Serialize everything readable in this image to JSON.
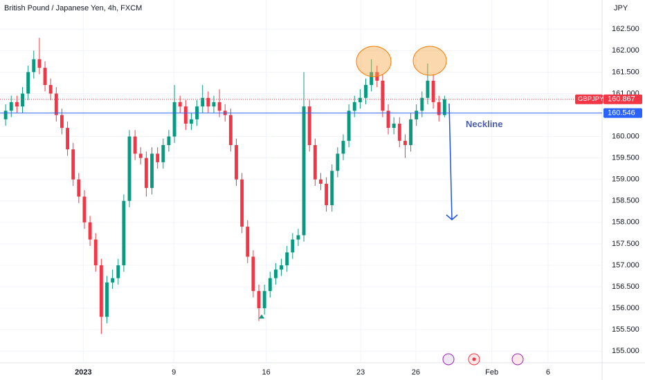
{
  "chart_data": {
    "type": "candlestick",
    "title": "British Pound / Japanese Yen, 4h, FXCM",
    "currency": "JPY",
    "up_color": "#089981",
    "down_color": "#f23645",
    "open": [
      160.4,
      160.6,
      160.8,
      160.7,
      161.0,
      161.5,
      161.8,
      161.6,
      161.2,
      161.0,
      160.5,
      160.2,
      159.7,
      159.0,
      158.6,
      158.0,
      157.6,
      157.0,
      155.8,
      156.6,
      156.7,
      157.0,
      158.5,
      160.0,
      159.6,
      159.5,
      158.8,
      159.6,
      159.4,
      159.8,
      160.0,
      160.8,
      160.7,
      160.3,
      160.4,
      160.7,
      160.9,
      160.7,
      160.8,
      160.6,
      160.5,
      159.8,
      159.0,
      157.9,
      157.2,
      156.4,
      156.0,
      156.4,
      156.7,
      156.9,
      157.0,
      157.3,
      157.6,
      157.7,
      160.7,
      159.8,
      159.0,
      158.9,
      158.4,
      159.2,
      159.6,
      159.9,
      160.6,
      160.8,
      160.9,
      161.2,
      161.5,
      161.3,
      160.6,
      160.2,
      160.3,
      159.9,
      159.8,
      160.4,
      160.6,
      160.9,
      161.3,
      160.8,
      160.5
    ],
    "high": [
      160.75,
      160.95,
      160.95,
      161.15,
      161.65,
      162.0,
      162.3,
      161.75,
      161.35,
      161.15,
      160.65,
      160.35,
      159.85,
      159.15,
      158.75,
      158.15,
      157.75,
      157.15,
      156.75,
      156.9,
      157.15,
      158.65,
      160.15,
      160.15,
      159.75,
      159.65,
      159.75,
      159.75,
      159.95,
      160.15,
      161.2,
      160.95,
      160.85,
      160.55,
      160.85,
      161.2,
      161.05,
      160.95,
      161.1,
      160.75,
      160.65,
      159.95,
      159.15,
      158.05,
      157.35,
      156.55,
      156.55,
      156.85,
      157.05,
      157.15,
      157.45,
      157.75,
      157.85,
      161.5,
      160.85,
      159.95,
      159.15,
      159.05,
      159.35,
      159.75,
      160.05,
      160.75,
      160.95,
      161.1,
      161.35,
      161.8,
      161.65,
      161.45,
      160.75,
      160.45,
      160.45,
      160.05,
      160.55,
      160.75,
      161.05,
      161.7,
      161.45,
      160.95,
      160.95
    ],
    "low": [
      160.25,
      160.45,
      160.55,
      160.55,
      160.85,
      161.35,
      161.45,
      161.05,
      160.85,
      160.35,
      160.05,
      159.55,
      158.85,
      158.45,
      157.85,
      157.45,
      156.85,
      155.4,
      155.65,
      156.45,
      156.55,
      156.85,
      158.35,
      159.45,
      159.35,
      158.6,
      158.65,
      159.25,
      159.25,
      159.65,
      159.85,
      160.55,
      160.15,
      160.15,
      160.25,
      160.55,
      160.55,
      160.55,
      160.45,
      160.35,
      159.65,
      158.85,
      157.75,
      157.05,
      156.25,
      155.7,
      155.85,
      156.25,
      156.55,
      156.75,
      156.85,
      157.15,
      157.45,
      157.55,
      159.65,
      158.85,
      158.75,
      158.25,
      158.25,
      159.05,
      159.45,
      159.75,
      160.45,
      160.65,
      160.75,
      161.05,
      161.15,
      160.45,
      160.05,
      160.05,
      159.75,
      159.5,
      159.65,
      160.25,
      160.45,
      160.75,
      160.65,
      160.35,
      160.45
    ],
    "close": [
      160.6,
      160.8,
      160.7,
      161.0,
      161.5,
      161.8,
      161.6,
      161.2,
      161.0,
      160.5,
      160.2,
      159.7,
      159.0,
      158.6,
      158.0,
      157.6,
      157.0,
      155.8,
      156.6,
      156.7,
      157.0,
      158.5,
      160.0,
      159.6,
      159.5,
      158.8,
      159.6,
      159.4,
      159.8,
      160.0,
      160.8,
      160.7,
      160.3,
      160.4,
      160.7,
      160.9,
      160.7,
      160.8,
      160.6,
      160.5,
      159.8,
      159.0,
      157.9,
      157.2,
      156.4,
      156.0,
      156.4,
      156.7,
      156.9,
      157.0,
      157.3,
      157.6,
      157.7,
      160.7,
      159.8,
      159.0,
      158.9,
      158.4,
      159.2,
      159.6,
      159.9,
      160.6,
      160.8,
      160.9,
      161.2,
      161.5,
      161.3,
      160.6,
      160.2,
      160.3,
      159.9,
      159.8,
      160.4,
      160.6,
      160.9,
      161.3,
      160.8,
      160.5,
      160.87
    ],
    "xlim": [
      -1,
      106
    ],
    "xticks": [
      {
        "value": 13.8,
        "label": "2023"
      },
      {
        "value": 29.9,
        "label": "9"
      },
      {
        "value": 46.3,
        "label": "16"
      },
      {
        "value": 63.1,
        "label": "23"
      },
      {
        "value": 72.9,
        "label": "26"
      },
      {
        "value": 86.4,
        "label": "Feb"
      },
      {
        "value": 96.4,
        "label": "6"
      }
    ],
    "ylim": [
      154.73,
      163.18
    ],
    "yticks": [
      {
        "value": 155,
        "label": "155.000"
      },
      {
        "value": 155.5,
        "label": "155.500"
      },
      {
        "value": 156,
        "label": "156.000"
      },
      {
        "value": 156.5,
        "label": "156.500"
      },
      {
        "value": 157,
        "label": "157.000"
      },
      {
        "value": 157.5,
        "label": "157.500"
      },
      {
        "value": 158,
        "label": "158.000"
      },
      {
        "value": 158.5,
        "label": "158.500"
      },
      {
        "value": 159,
        "label": "159.000"
      },
      {
        "value": 159.5,
        "label": "159.500"
      },
      {
        "value": 160,
        "label": "160.000"
      },
      {
        "value": 160.5,
        "label": "160.500"
      },
      {
        "value": 161,
        "label": "161.000"
      },
      {
        "value": 161.5,
        "label": "161.500"
      },
      {
        "value": 162,
        "label": "162.000"
      },
      {
        "value": 162.5,
        "label": "162.500"
      }
    ],
    "grid": true,
    "last_price": {
      "symbol": "GBPJPY",
      "value": 160.867,
      "label": "160.867"
    },
    "neckline": {
      "name": "Neckline",
      "value": 160.546,
      "label": "160.546"
    }
  }
}
